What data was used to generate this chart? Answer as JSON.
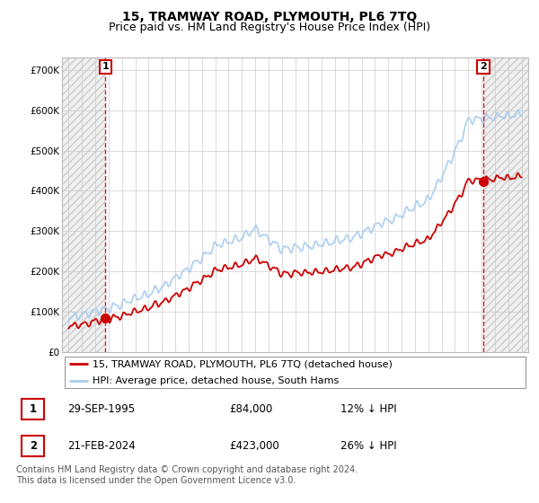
{
  "title": "15, TRAMWAY ROAD, PLYMOUTH, PL6 7TQ",
  "subtitle": "Price paid vs. HM Land Registry's House Price Index (HPI)",
  "ylabel_ticks": [
    "£0",
    "£100K",
    "£200K",
    "£300K",
    "£400K",
    "£500K",
    "£600K",
    "£700K"
  ],
  "ytick_values": [
    0,
    100000,
    200000,
    300000,
    400000,
    500000,
    600000,
    700000
  ],
  "ylim": [
    0,
    730000
  ],
  "xlim_start": 1992.5,
  "xlim_end": 2027.5,
  "hpi_color": "#aaccee",
  "price_color": "#cc0000",
  "bg_color": "#ffffff",
  "sale1_x": 1995.75,
  "sale1_y": 84000,
  "sale2_x": 2024.13,
  "sale2_y": 423000,
  "legend_line1": "15, TRAMWAY ROAD, PLYMOUTH, PL6 7TQ (detached house)",
  "legend_line2": "HPI: Average price, detached house, South Hams",
  "table_row1": [
    "1",
    "29-SEP-1995",
    "£84,000",
    "12% ↓ HPI"
  ],
  "table_row2": [
    "2",
    "21-FEB-2024",
    "£423,000",
    "26% ↓ HPI"
  ],
  "footer": "Contains HM Land Registry data © Crown copyright and database right 2024.\nThis data is licensed under the Open Government Licence v3.0.",
  "title_fontsize": 10,
  "subtitle_fontsize": 9,
  "tick_fontsize": 7.5,
  "label_fontsize": 8.5
}
